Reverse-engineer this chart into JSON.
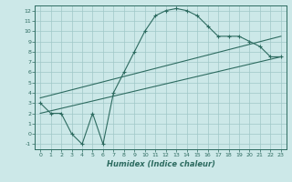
{
  "xlabel": "Humidex (Indice chaleur)",
  "xlim": [
    -0.5,
    23.5
  ],
  "ylim": [
    -1.5,
    12.5
  ],
  "xticks": [
    0,
    1,
    2,
    3,
    4,
    5,
    6,
    7,
    8,
    9,
    10,
    11,
    12,
    13,
    14,
    15,
    16,
    17,
    18,
    19,
    20,
    21,
    22,
    23
  ],
  "yticks": [
    -1,
    0,
    1,
    2,
    3,
    4,
    5,
    6,
    7,
    8,
    9,
    10,
    11,
    12
  ],
  "bg_color": "#cce8e8",
  "line_color": "#2d6b60",
  "grid_color": "#a0c8c8",
  "main_x": [
    0,
    1,
    2,
    3,
    4,
    5,
    6,
    7,
    8,
    9,
    10,
    11,
    12,
    13,
    14,
    15,
    16,
    17,
    18,
    19,
    20,
    21,
    22,
    23
  ],
  "main_y": [
    3,
    2,
    2,
    0,
    -1,
    2,
    -1,
    4,
    6,
    8,
    10,
    11.5,
    12,
    12.2,
    12,
    11.5,
    10.5,
    9.5,
    9.5,
    9.5,
    9,
    8.5,
    7.5,
    7.5
  ],
  "line1_x": [
    0,
    23
  ],
  "line1_y": [
    3.5,
    9.5
  ],
  "line2_x": [
    0,
    23
  ],
  "line2_y": [
    2.0,
    7.5
  ]
}
